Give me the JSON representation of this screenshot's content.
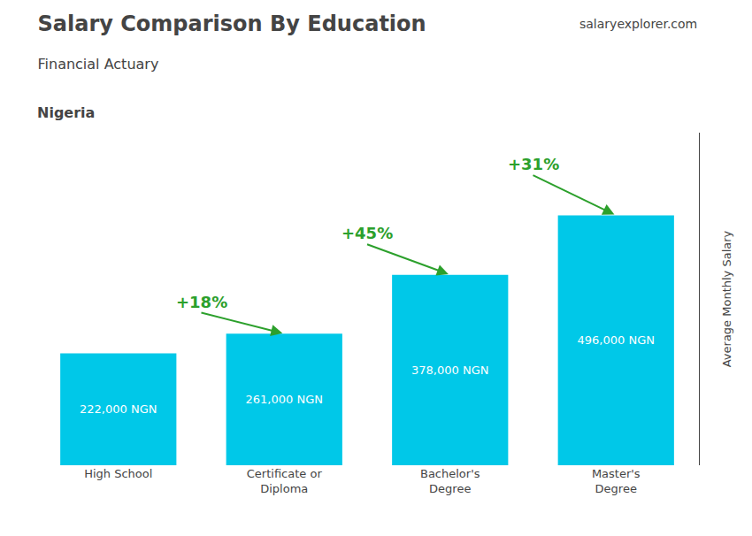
{
  "chart_data": {
    "type": "bar",
    "title": "Salary Comparison By Education",
    "subtitle": "Financial Actuary",
    "ylabel": "Average Monthly Salary",
    "categories": [
      "High School",
      "Certificate or\nDiploma",
      "Bachelor's\nDegree",
      "Master's\nDegree"
    ],
    "values": [
      222000,
      261000,
      378000,
      496000
    ],
    "value_labels": [
      "222,000 NGN",
      "261,000 NGN",
      "378,000 NGN",
      "496,000 NGN"
    ],
    "data_labels": true,
    "color": "#00c8e8",
    "ylim": [
      0,
      660000
    ],
    "grid": false,
    "tick_labels": "x",
    "annotations": [
      {
        "text": "Nigeria"
      },
      {
        "text": "salaryexplorer.com"
      },
      {
        "text": "+18%",
        "arrow": [
          "High School",
          "Certificate or\nDiploma"
        ]
      },
      {
        "text": "+45%",
        "arrow": [
          "Certificate or\nDiploma",
          "Bachelor's\nDegree"
        ]
      },
      {
        "text": "+31%",
        "arrow": [
          "Bachelor's\nDegree",
          "Master's\nDegree"
        ]
      }
    ]
  }
}
